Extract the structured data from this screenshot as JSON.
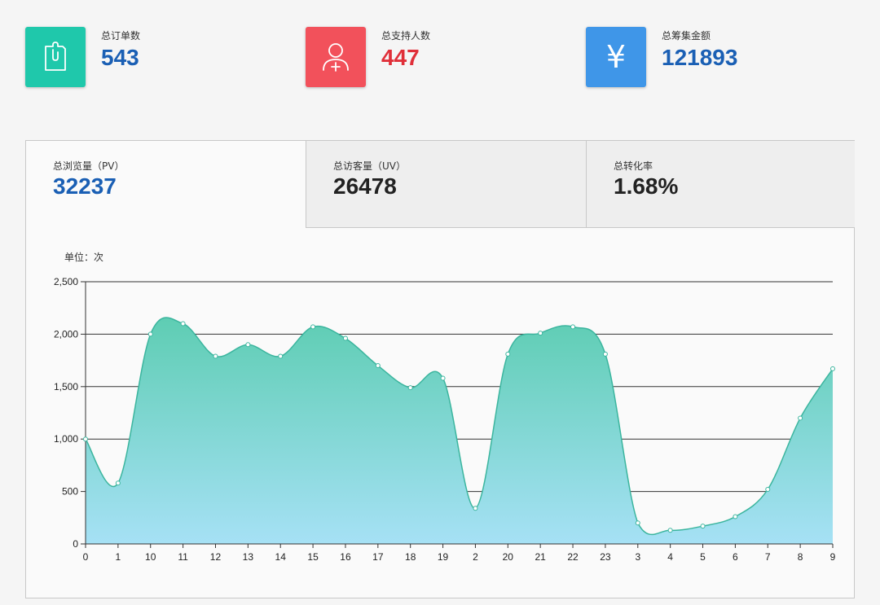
{
  "stats": [
    {
      "label": "总订单数",
      "value": "543",
      "value_color": "#1a5fb4",
      "icon": "clipboard-icon",
      "icon_bg": "#1fc8ab"
    },
    {
      "label": "总支持人数",
      "value": "447",
      "value_color": "#e02f39",
      "icon": "add-user-icon",
      "icon_bg": "#f2515b"
    },
    {
      "label": "总筹集金额",
      "value": "121893",
      "value_color": "#1a5fb4",
      "icon": "yuan-icon",
      "icon_bg": "#3f96e8",
      "icon_text": "¥"
    }
  ],
  "tabs": [
    {
      "label": "总浏览量（PV）",
      "value": "32237",
      "value_color": "#1a5fb4",
      "active": true
    },
    {
      "label": "总访客量（UV）",
      "value": "26478",
      "value_color": "#222222",
      "active": false
    },
    {
      "label": "总转化率",
      "value": "1.68%",
      "value_color": "#222222",
      "active": false
    }
  ],
  "unit_label": "单位：次",
  "chart_data": {
    "type": "area",
    "categories": [
      "0",
      "1",
      "10",
      "11",
      "12",
      "13",
      "14",
      "15",
      "16",
      "17",
      "18",
      "19",
      "2",
      "20",
      "21",
      "22",
      "23",
      "3",
      "4",
      "5",
      "6",
      "7",
      "8",
      "9"
    ],
    "values": [
      1000,
      580,
      2000,
      2100,
      1790,
      1900,
      1790,
      2070,
      1960,
      1700,
      1490,
      1580,
      340,
      1810,
      2010,
      2070,
      1810,
      200,
      130,
      170,
      260,
      520,
      1200,
      1670
    ],
    "ylim": [
      0,
      2500
    ],
    "yticks": [
      0,
      500,
      1000,
      1500,
      2000,
      2500
    ],
    "ytick_labels": [
      "0",
      "500",
      "1,000",
      "1,500",
      "2,000",
      "2,500"
    ],
    "grid": true,
    "fill_top_color": "#5ecdb3",
    "fill_bottom_color": "#a6e1f5",
    "line_color": "#3bb59e"
  }
}
